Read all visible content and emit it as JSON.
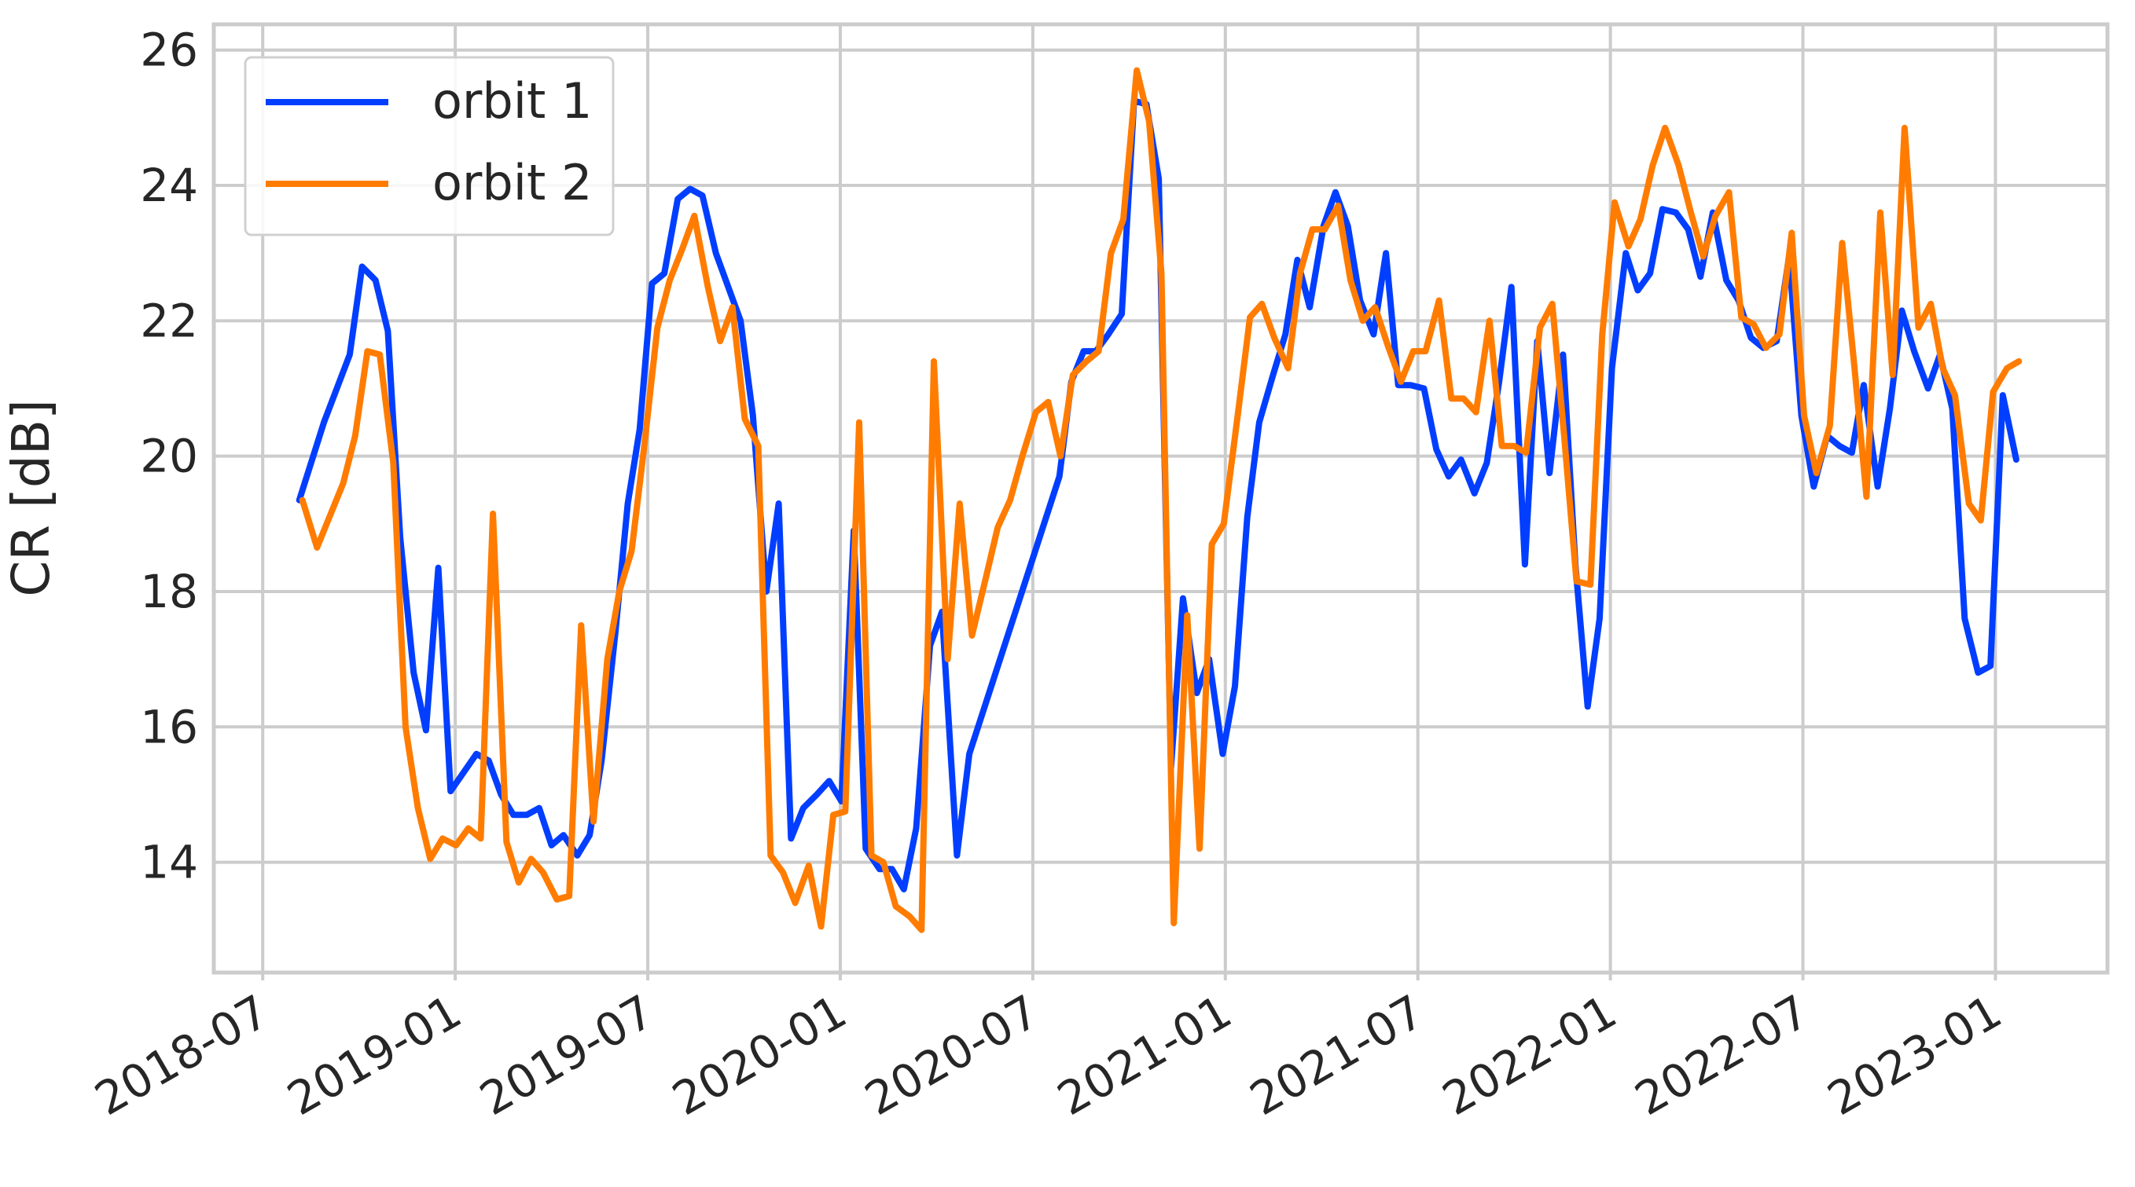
{
  "chart_data": {
    "type": "line",
    "ylabel": "CR [dB]",
    "xlim": [
      2018.373,
      2023.291
    ],
    "ylim": [
      12.37,
      26.38
    ],
    "xticks": [
      {
        "value": 2018.5,
        "label": "2018-07"
      },
      {
        "value": 2019.0,
        "label": "2019-01"
      },
      {
        "value": 2019.5,
        "label": "2019-07"
      },
      {
        "value": 2020.0,
        "label": "2020-01"
      },
      {
        "value": 2020.5,
        "label": "2020-07"
      },
      {
        "value": 2021.0,
        "label": "2021-01"
      },
      {
        "value": 2021.5,
        "label": "2021-07"
      },
      {
        "value": 2022.0,
        "label": "2022-01"
      },
      {
        "value": 2022.5,
        "label": "2022-07"
      },
      {
        "value": 2023.0,
        "label": "2023-01"
      }
    ],
    "yticks": [
      14,
      16,
      18,
      20,
      22,
      24,
      26
    ],
    "grid": true,
    "legend": "upper-left",
    "series": [
      {
        "name": "orbit 1",
        "color": "#023eff",
        "x": [
          2018.595,
          2018.659,
          2018.726,
          2018.758,
          2018.793,
          2018.825,
          2018.857,
          2018.892,
          2018.924,
          2018.956,
          2018.988,
          2019.055,
          2019.087,
          2019.119,
          2019.151,
          2019.186,
          2019.218,
          2019.25,
          2019.281,
          2019.317,
          2019.349,
          2019.38,
          2019.416,
          2019.448,
          2019.479,
          2019.511,
          2019.543,
          2019.578,
          2019.61,
          2019.642,
          2019.677,
          2019.709,
          2019.741,
          2019.773,
          2019.808,
          2019.84,
          2019.872,
          2019.904,
          2019.939,
          2019.971,
          2020.003,
          2020.035,
          2020.066,
          2020.102,
          2020.134,
          2020.165,
          2020.197,
          2020.233,
          2020.264,
          2020.303,
          2020.335,
          2020.569,
          2020.6,
          2020.632,
          2020.664,
          2020.696,
          2020.731,
          2020.763,
          2020.795,
          2020.827,
          2020.859,
          2020.89,
          2020.926,
          2020.958,
          2020.993,
          2021.025,
          2021.057,
          2021.088,
          2021.124,
          2021.156,
          2021.187,
          2021.219,
          2021.255,
          2021.286,
          2021.318,
          2021.35,
          2021.385,
          2021.417,
          2021.449,
          2021.481,
          2021.516,
          2021.548,
          2021.58,
          2021.612,
          2021.647,
          2021.679,
          2021.711,
          2021.743,
          2021.778,
          2021.81,
          2021.842,
          2021.877,
          2021.909,
          2021.941,
          2021.972,
          2022.004,
          2022.04,
          2022.071,
          2022.103,
          2022.135,
          2022.17,
          2022.202,
          2022.234,
          2022.266,
          2022.301,
          2022.333,
          2022.365,
          2022.397,
          2022.432,
          2022.464,
          2022.496,
          2022.528,
          2022.563,
          2022.595,
          2022.627,
          2022.658,
          2022.694,
          2022.726,
          2022.757,
          2022.789,
          2022.825,
          2022.856,
          2022.888,
          2022.92,
          2022.955,
          2022.987,
          2023.019,
          2023.054
        ],
        "values": [
          19.35,
          20.5,
          21.5,
          22.8,
          22.6,
          21.85,
          18.8,
          16.8,
          15.95,
          18.35,
          15.05,
          15.6,
          15.5,
          15.0,
          14.7,
          14.7,
          14.8,
          14.25,
          14.4,
          14.1,
          14.4,
          15.5,
          17.4,
          19.3,
          20.4,
          22.55,
          22.7,
          23.8,
          23.95,
          23.85,
          23.0,
          22.5,
          22.0,
          20.6,
          18.0,
          19.3,
          14.35,
          14.8,
          15.0,
          15.2,
          14.9,
          18.9,
          14.2,
          13.9,
          13.9,
          13.6,
          14.5,
          17.2,
          17.7,
          14.1,
          15.6,
          19.7,
          21.1,
          21.55,
          21.55,
          21.8,
          22.1,
          25.25,
          25.2,
          24.1,
          15.4,
          17.9,
          16.5,
          17.0,
          15.6,
          16.6,
          19.1,
          20.5,
          21.2,
          21.8,
          22.9,
          22.2,
          23.4,
          23.9,
          23.4,
          22.3,
          21.8,
          23.0,
          21.05,
          21.05,
          21.0,
          20.1,
          19.7,
          19.95,
          19.45,
          19.9,
          21.1,
          22.5,
          18.4,
          21.7,
          19.75,
          21.5,
          18.4,
          16.3,
          17.6,
          21.3,
          23.0,
          22.45,
          22.7,
          23.65,
          23.6,
          23.35,
          22.65,
          23.6,
          22.6,
          22.3,
          21.75,
          21.6,
          21.7,
          22.95,
          20.6,
          19.55,
          20.3,
          20.15,
          20.05,
          21.05,
          19.55,
          20.7,
          22.15,
          21.55,
          21.0,
          21.5,
          20.7,
          17.6,
          16.8,
          16.9,
          20.9,
          19.95
        ]
      },
      {
        "name": "orbit 2",
        "color": "#ff7c00",
        "x": [
          2018.603,
          2018.641,
          2018.709,
          2018.74,
          2018.772,
          2018.804,
          2018.839,
          2018.871,
          2018.903,
          2018.935,
          2018.967,
          2019.002,
          2019.034,
          2019.066,
          2019.098,
          2019.133,
          2019.165,
          2019.197,
          2019.228,
          2019.264,
          2019.296,
          2019.327,
          2019.359,
          2019.395,
          2019.426,
          2019.458,
          2019.49,
          2019.525,
          2019.557,
          2019.589,
          2019.621,
          2019.656,
          2019.688,
          2019.72,
          2019.752,
          2019.787,
          2019.819,
          2019.851,
          2019.883,
          2019.918,
          2019.95,
          2019.982,
          2020.013,
          2020.049,
          2020.081,
          2020.112,
          2020.144,
          2020.18,
          2020.211,
          2020.243,
          2020.279,
          2020.31,
          2020.342,
          2020.378,
          2020.409,
          2020.441,
          2020.473,
          2020.508,
          2020.54,
          2020.572,
          2020.604,
          2020.639,
          2020.671,
          2020.703,
          2020.735,
          2020.77,
          2020.802,
          2020.834,
          2020.866,
          2020.901,
          2020.933,
          2020.965,
          2020.996,
          2021.032,
          2021.064,
          2021.095,
          2021.127,
          2021.163,
          2021.194,
          2021.226,
          2021.258,
          2021.293,
          2021.325,
          2021.357,
          2021.389,
          2021.424,
          2021.456,
          2021.488,
          2021.52,
          2021.555,
          2021.587,
          2021.619,
          2021.651,
          2021.686,
          2021.718,
          2021.75,
          2021.781,
          2021.817,
          2021.849,
          2021.88,
          2021.912,
          2021.948,
          2021.979,
          2022.011,
          2022.047,
          2022.078,
          2022.11,
          2022.142,
          2022.177,
          2022.209,
          2022.241,
          2022.273,
          2022.308,
          2022.34,
          2022.372,
          2022.404,
          2022.439,
          2022.471,
          2022.503,
          2022.535,
          2022.57,
          2022.602,
          2022.634,
          2022.665,
          2022.701,
          2022.733,
          2022.764,
          2022.8,
          2022.832,
          2022.863,
          2022.895,
          2022.931,
          2022.962,
          2022.994,
          2023.03,
          2023.061
        ],
        "values": [
          19.35,
          18.65,
          19.6,
          20.3,
          21.55,
          21.5,
          19.9,
          16.0,
          14.8,
          14.05,
          14.35,
          14.25,
          14.5,
          14.35,
          19.15,
          14.3,
          13.7,
          14.05,
          13.85,
          13.45,
          13.5,
          17.5,
          14.6,
          17.0,
          18.0,
          18.6,
          20.1,
          21.9,
          22.6,
          23.05,
          23.55,
          22.5,
          21.7,
          22.2,
          20.55,
          20.15,
          14.1,
          13.85,
          13.4,
          13.95,
          13.05,
          14.7,
          14.75,
          20.5,
          14.1,
          14.0,
          13.35,
          13.2,
          13.0,
          21.4,
          17.0,
          19.3,
          17.35,
          18.2,
          18.95,
          19.35,
          20.0,
          20.65,
          20.8,
          20.0,
          21.2,
          21.4,
          21.55,
          23.0,
          23.5,
          25.7,
          24.95,
          22.7,
          13.1,
          17.65,
          14.2,
          18.7,
          19.0,
          20.6,
          22.05,
          22.25,
          21.75,
          21.3,
          22.7,
          23.35,
          23.35,
          23.7,
          22.6,
          22.0,
          22.2,
          21.6,
          21.1,
          21.55,
          21.55,
          22.3,
          20.85,
          20.85,
          20.65,
          22.0,
          20.15,
          20.15,
          20.05,
          21.9,
          22.25,
          20.3,
          18.15,
          18.1,
          21.8,
          23.75,
          23.1,
          23.5,
          24.3,
          24.85,
          24.3,
          23.6,
          22.95,
          23.55,
          23.9,
          22.05,
          21.95,
          21.6,
          21.8,
          23.3,
          20.6,
          19.75,
          20.45,
          23.15,
          21.3,
          19.4,
          23.6,
          21.2,
          24.85,
          21.9,
          22.25,
          21.3,
          20.9,
          19.3,
          19.05,
          20.95,
          21.3,
          21.4
        ]
      }
    ]
  }
}
